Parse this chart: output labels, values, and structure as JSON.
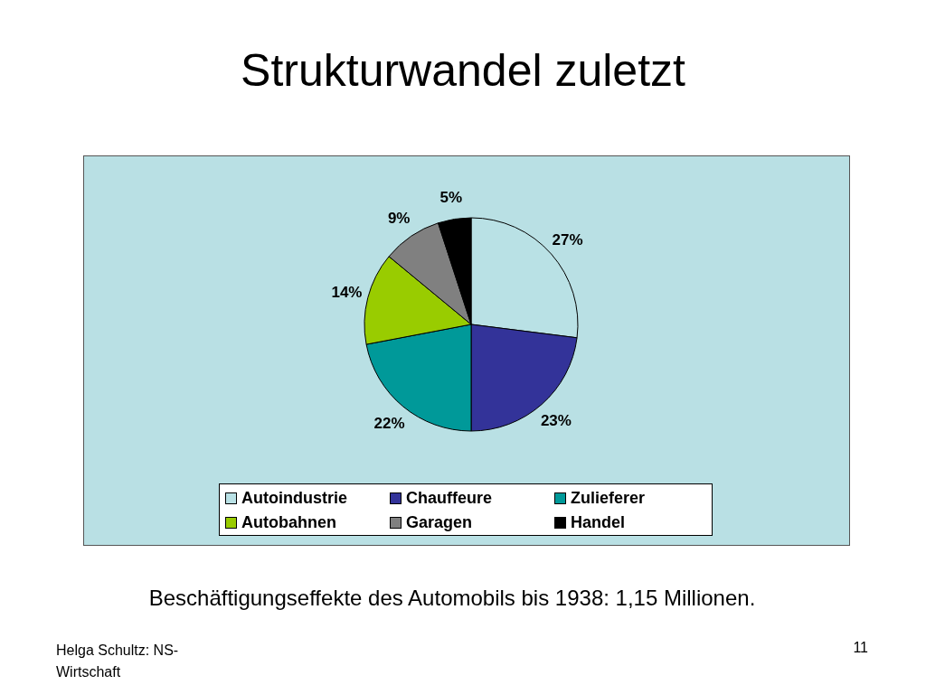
{
  "chart_data": {
    "type": "pie",
    "title": "Strukturwandel zuletzt",
    "categories": [
      "Autoindustrie",
      "Chauffeure",
      "Zulieferer",
      "Autobahnen",
      "Garagen",
      "Handel"
    ],
    "values": [
      27,
      23,
      22,
      14,
      9,
      5
    ],
    "colors": [
      "#b9e1e5",
      "#333399",
      "#009999",
      "#99cc00",
      "#808080",
      "#000000"
    ],
    "value_labels": [
      "27%",
      "23%",
      "22%",
      "14%",
      "9%",
      "5%"
    ],
    "legend": "bottom",
    "annotations": [
      "Beschäftigungseffekte des Automobils bis 1938: 1,15 Millionen.",
      "Helga Schultz: NS-Wirtschaft",
      "11"
    ]
  }
}
